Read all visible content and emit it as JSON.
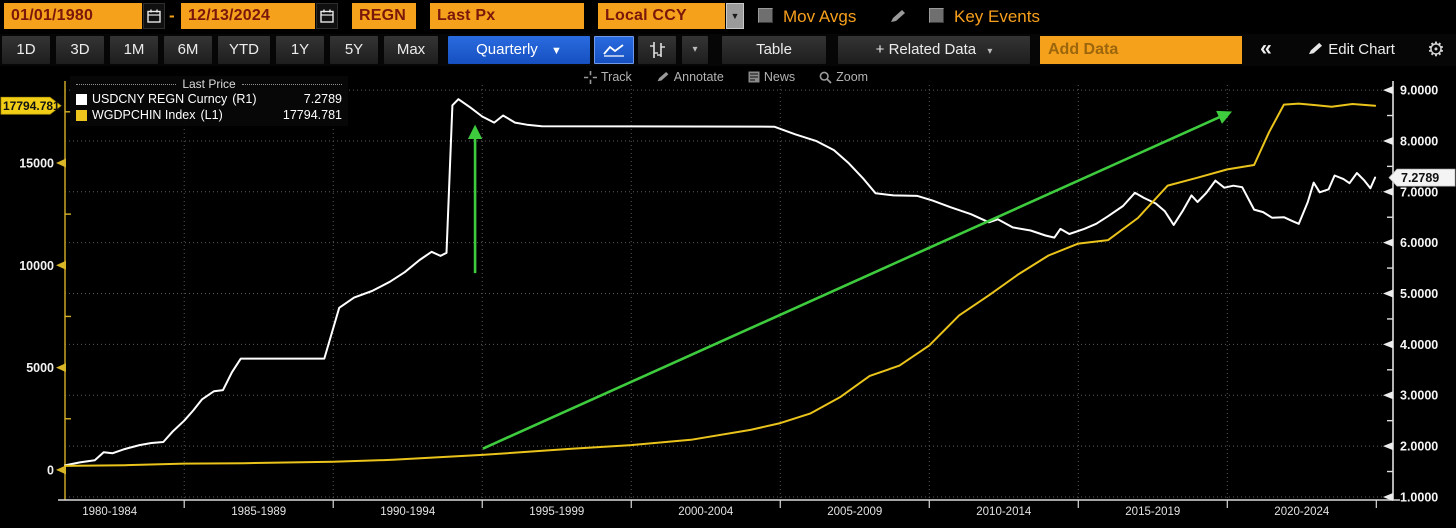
{
  "toolbar_top": {
    "date_start": "01/01/1980",
    "date_separator": "-",
    "date_end": "12/13/2024",
    "ticker": "REGN",
    "field": "Last Px",
    "currency": "Local CCY",
    "mov_avgs_label": "Mov Avgs",
    "key_events_label": "Key Events"
  },
  "toolbar_ranges": {
    "buttons": [
      "1D",
      "3D",
      "1M",
      "6M",
      "YTD",
      "1Y",
      "5Y",
      "Max"
    ],
    "period_label": "Quarterly",
    "table_label": "Table",
    "related_data_label": "+ Related Data",
    "add_data_placeholder": "Add Data",
    "edit_chart_label": "Edit Chart"
  },
  "icons": {
    "caret_down": "▼",
    "caret_small": "▾",
    "chevrons_left": "«",
    "gear": "⚙"
  },
  "chart_toolbar": {
    "track_label": "Track",
    "annotate_label": "Annotate",
    "news_label": "News",
    "zoom_label": "Zoom"
  },
  "legend": {
    "title": "Last Price",
    "series": [
      {
        "name": "USDCNY REGN Curncy",
        "axis": "(R1)",
        "value": "7.2789",
        "color": "#ffffff"
      },
      {
        "name": "WGDPCHIN Index",
        "axis": "(L1)",
        "value": "17794.781",
        "color": "#eec51d"
      }
    ]
  },
  "chart_data": {
    "type": "line",
    "x_labels": [
      "1980-1984",
      "1985-1989",
      "1990-1994",
      "1995-1999",
      "2000-2004",
      "2005-2009",
      "2010-2014",
      "2015-2019",
      "2020-2024"
    ],
    "x_label_centers": [
      1982.5,
      1987.5,
      1992.5,
      1997.5,
      2002.5,
      2007.5,
      2012.5,
      2017.5,
      2022.5
    ],
    "x_gridline_years": [
      1985,
      1990,
      1995,
      2000,
      2005,
      2010,
      2015,
      2020
    ],
    "x_boundary_ticks": [
      1985,
      1990,
      1995,
      2000,
      2005,
      2010,
      2015,
      2020,
      2025
    ],
    "x_range": [
      1981,
      2025.56
    ],
    "right_axis": {
      "tick_values": [
        1,
        2,
        3,
        4,
        5,
        6,
        7,
        8,
        9
      ],
      "minor_ticks": [
        1.5,
        2.5,
        3.5,
        4.5,
        5.5,
        6.5,
        7.5,
        8.5
      ],
      "range": [
        0.94,
        9.1
      ],
      "tag": "7.2789",
      "tag_value": 7.2789,
      "decimals": 4
    },
    "left_axis": {
      "tick_values": [
        0,
        5000,
        10000,
        15000
      ],
      "minor_ticks": [
        2500,
        7500,
        12500,
        17500
      ],
      "range": [
        -1470,
        18810
      ],
      "tag": "17794.781",
      "tag_value": 17794.781
    },
    "series": [
      {
        "name": "USDCNY REGN Curncy",
        "axis": "right",
        "color": "#ffffff",
        "last_value": 7.2789,
        "points": [
          [
            1981.0,
            1.62
          ],
          [
            1981.5,
            1.68
          ],
          [
            1982.0,
            1.72
          ],
          [
            1982.3,
            1.88
          ],
          [
            1982.6,
            1.86
          ],
          [
            1983.0,
            1.94
          ],
          [
            1983.5,
            2.02
          ],
          [
            1983.9,
            2.06
          ],
          [
            1984.3,
            2.08
          ],
          [
            1984.6,
            2.28
          ],
          [
            1985.0,
            2.5
          ],
          [
            1985.3,
            2.7
          ],
          [
            1985.6,
            2.92
          ],
          [
            1986.0,
            3.08
          ],
          [
            1986.3,
            3.1
          ],
          [
            1986.6,
            3.45
          ],
          [
            1986.9,
            3.72
          ],
          [
            1989.7,
            3.72
          ],
          [
            1990.2,
            4.72
          ],
          [
            1990.7,
            4.92
          ],
          [
            1991.3,
            5.05
          ],
          [
            1991.9,
            5.23
          ],
          [
            1992.4,
            5.42
          ],
          [
            1992.9,
            5.66
          ],
          [
            1993.3,
            5.82
          ],
          [
            1993.6,
            5.74
          ],
          [
            1993.8,
            5.8
          ],
          [
            1994.0,
            8.7
          ],
          [
            1994.2,
            8.82
          ],
          [
            1994.6,
            8.66
          ],
          [
            1995.0,
            8.48
          ],
          [
            1995.4,
            8.36
          ],
          [
            1995.7,
            8.5
          ],
          [
            1996.1,
            8.36
          ],
          [
            1996.5,
            8.32
          ],
          [
            1997.0,
            8.29
          ],
          [
            2004.8,
            8.28
          ],
          [
            2005.5,
            8.13
          ],
          [
            2006.2,
            8.0
          ],
          [
            2006.8,
            7.82
          ],
          [
            2007.3,
            7.56
          ],
          [
            2007.8,
            7.25
          ],
          [
            2008.2,
            6.97
          ],
          [
            2008.8,
            6.93
          ],
          [
            2009.6,
            6.92
          ],
          [
            2010.1,
            6.83
          ],
          [
            2010.7,
            6.7
          ],
          [
            2011.4,
            6.56
          ],
          [
            2012.0,
            6.4
          ],
          [
            2012.3,
            6.46
          ],
          [
            2012.8,
            6.3
          ],
          [
            2013.4,
            6.24
          ],
          [
            2013.9,
            6.14
          ],
          [
            2014.2,
            6.1
          ],
          [
            2014.4,
            6.27
          ],
          [
            2014.7,
            6.17
          ],
          [
            2015.2,
            6.27
          ],
          [
            2015.6,
            6.37
          ],
          [
            2016.0,
            6.52
          ],
          [
            2016.5,
            6.72
          ],
          [
            2016.9,
            6.98
          ],
          [
            2017.2,
            6.88
          ],
          [
            2017.6,
            6.77
          ],
          [
            2017.9,
            6.62
          ],
          [
            2018.2,
            6.35
          ],
          [
            2018.5,
            6.62
          ],
          [
            2018.8,
            6.93
          ],
          [
            2019.0,
            6.8
          ],
          [
            2019.3,
            6.98
          ],
          [
            2019.6,
            7.22
          ],
          [
            2019.9,
            7.08
          ],
          [
            2020.2,
            7.12
          ],
          [
            2020.5,
            7.09
          ],
          [
            2020.9,
            6.65
          ],
          [
            2021.2,
            6.6
          ],
          [
            2021.5,
            6.49
          ],
          [
            2021.9,
            6.5
          ],
          [
            2022.2,
            6.42
          ],
          [
            2022.4,
            6.37
          ],
          [
            2022.7,
            6.8
          ],
          [
            2022.9,
            7.18
          ],
          [
            2023.1,
            6.99
          ],
          [
            2023.4,
            7.05
          ],
          [
            2023.6,
            7.32
          ],
          [
            2023.9,
            7.25
          ],
          [
            2024.1,
            7.17
          ],
          [
            2024.35,
            7.37
          ],
          [
            2024.6,
            7.22
          ],
          [
            2024.8,
            7.07
          ],
          [
            2024.96,
            7.2789
          ]
        ]
      },
      {
        "name": "WGDPCHIN Index",
        "axis": "left",
        "color": "#eac31b",
        "last_value": 17794.781,
        "points": [
          [
            1981,
            195
          ],
          [
            1983,
            230
          ],
          [
            1985,
            310
          ],
          [
            1987,
            330
          ],
          [
            1990,
            395
          ],
          [
            1992,
            495
          ],
          [
            1995,
            735
          ],
          [
            1998,
            1030
          ],
          [
            2000,
            1211
          ],
          [
            2002,
            1470
          ],
          [
            2004,
            1955
          ],
          [
            2005,
            2286
          ],
          [
            2006,
            2752
          ],
          [
            2007,
            3550
          ],
          [
            2008,
            4594
          ],
          [
            2009,
            5100
          ],
          [
            2010,
            6087
          ],
          [
            2011,
            7552
          ],
          [
            2012,
            8532
          ],
          [
            2013,
            9570
          ],
          [
            2014,
            10476
          ],
          [
            2015,
            11062
          ],
          [
            2016,
            11233
          ],
          [
            2017,
            12310
          ],
          [
            2018,
            13895
          ],
          [
            2019,
            14280
          ],
          [
            2020,
            14688
          ],
          [
            2020.9,
            14900
          ],
          [
            2021.4,
            16500
          ],
          [
            2021.9,
            17850
          ],
          [
            2022.4,
            17900
          ],
          [
            2023.0,
            17820
          ],
          [
            2023.5,
            17750
          ],
          [
            2024.2,
            17880
          ],
          [
            2024.96,
            17794.781
          ]
        ]
      }
    ],
    "annotations": [
      {
        "type": "arrow",
        "color": "#3ecb3e",
        "axis": "right",
        "from": [
          1994.76,
          5.4
        ],
        "to": [
          1994.76,
          8.25
        ]
      },
      {
        "type": "arrow",
        "color": "#3ecb3e",
        "axis": "right",
        "from": [
          1995.02,
          1.95
        ],
        "to": [
          2020.05,
          8.55
        ]
      }
    ],
    "grid": true,
    "legend_position": "top-left"
  }
}
